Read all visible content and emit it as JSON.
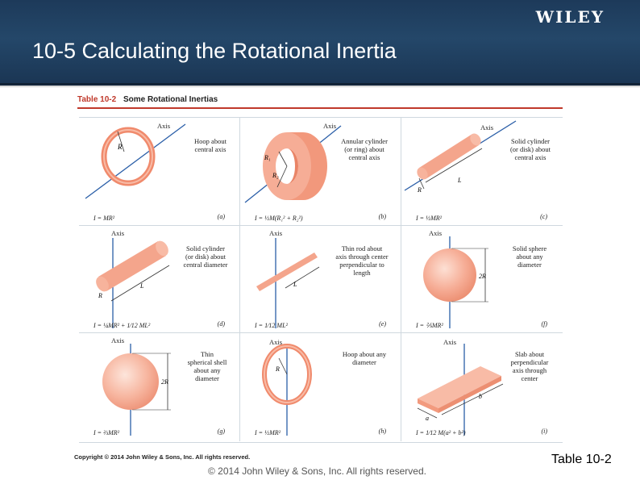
{
  "header": {
    "logo": "WILEY",
    "title": "10-5  Calculating the Rotational Inertia"
  },
  "table": {
    "number": "Table 10-2",
    "name": "Some Rotational Inertias",
    "cells": [
      {
        "axis": "Axis",
        "description": "Hoop about\ncentral axis",
        "formula": "I = MR²",
        "letter": "(a)"
      },
      {
        "axis": "Axis",
        "description": "Annular cylinder\n(or ring) about\ncentral axis",
        "formula": "I = ½M(R₁² + R₂²)",
        "letter": "(b)"
      },
      {
        "axis": "Axis",
        "description": "Solid cylinder\n(or disk) about\ncentral axis",
        "formula": "I = ½MR²",
        "letter": "(c)"
      },
      {
        "axis": "Axis",
        "description": "Solid cylinder\n(or disk) about\ncentral diameter",
        "formula": "I = ¼MR² + 1⁄12 ML²",
        "letter": "(d)"
      },
      {
        "axis": "Axis",
        "description": "Thin rod about\naxis through center\nperpendicular to\nlength",
        "formula": "I = 1⁄12 ML²",
        "letter": "(e)"
      },
      {
        "axis": "Axis",
        "description": "Solid sphere\nabout any\ndiameter",
        "formula": "I = ⅖MR²",
        "letter": "(f)"
      },
      {
        "axis": "Axis",
        "description": "Thin\nspherical shell\nabout any\ndiameter",
        "formula": "I = ⅔MR²",
        "letter": "(g)"
      },
      {
        "axis": "Axis",
        "description": "Hoop about any\ndiameter",
        "formula": "I = ½MR²",
        "letter": "(h)"
      },
      {
        "axis": "Axis",
        "description": "Slab about\nperpendicular\naxis through\ncenter",
        "formula": "I = 1⁄12 M(a² + b²)",
        "letter": "(i)"
      }
    ],
    "dimension_labels": {
      "R": "R",
      "R1": "R₁",
      "R2": "R₂",
      "L": "L",
      "two_R": "2R",
      "a": "a",
      "b": "b"
    }
  },
  "footer": {
    "copyright_bold": "Copyright © 2014 John Wiley & Sons, Inc. All rights reserved.",
    "copyright": "© 2014 John Wiley & Sons, Inc. All rights reserved.",
    "table_ref": "Table 10-2"
  },
  "colors": {
    "header_bg": "#244769",
    "accent_red": "#c0392b",
    "object_fill": "#f4a58c",
    "axis_line": "#2b5fa8"
  }
}
